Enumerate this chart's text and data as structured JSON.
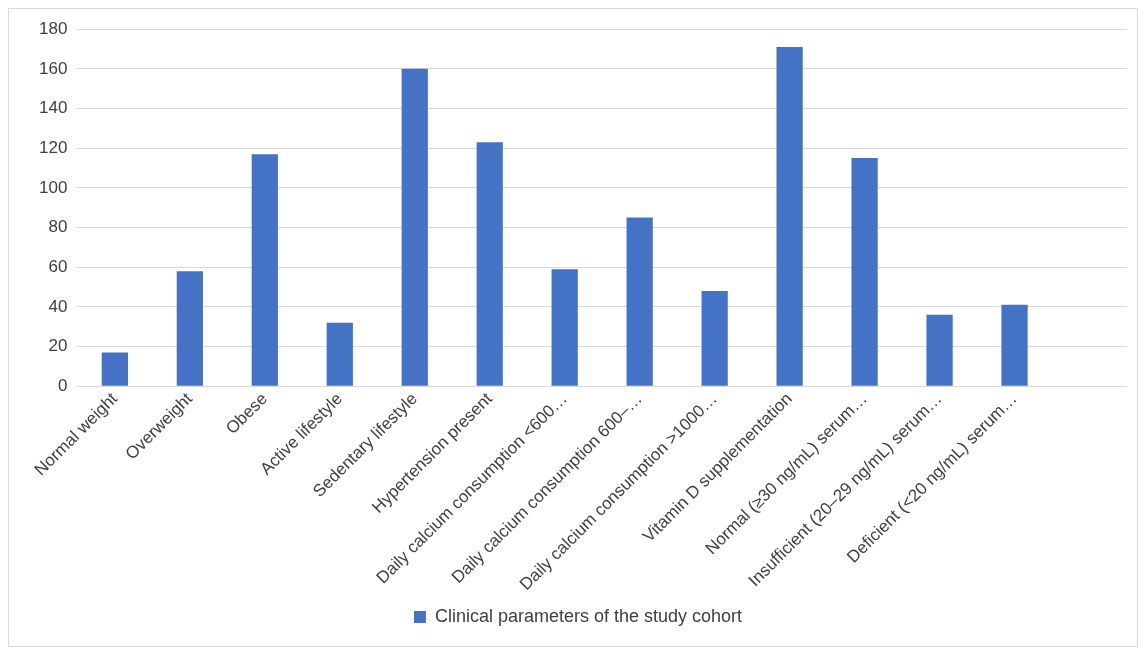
{
  "chart_data": {
    "type": "bar",
    "categories": [
      "Normal weight",
      "Overweight",
      "Obese",
      "Active lifestyle",
      "Sedentary lifestyle",
      "Hypertension present",
      "Daily calcium consumption <600…",
      "Daily calcium consumption 600–…",
      "Daily calcium consumption >1000…",
      "Vitamin D supplementation",
      "Normal (≥30 ng/mL) serum…",
      "Insufficient (20–29 ng/mL) serum…",
      "Deficient (<20 ng/mL) serum…",
      null
    ],
    "series": [
      {
        "name": "Clinical parameters of the study cohort",
        "color": "#4472c4",
        "values": [
          17,
          58,
          117,
          32,
          160,
          123,
          59,
          85,
          48,
          171,
          115,
          36,
          41,
          null
        ]
      }
    ],
    "ylim": [
      0,
      180
    ],
    "yticks": [
      0,
      20,
      40,
      60,
      80,
      100,
      120,
      140,
      160,
      180
    ],
    "grid": "y",
    "legend": "bottom"
  }
}
